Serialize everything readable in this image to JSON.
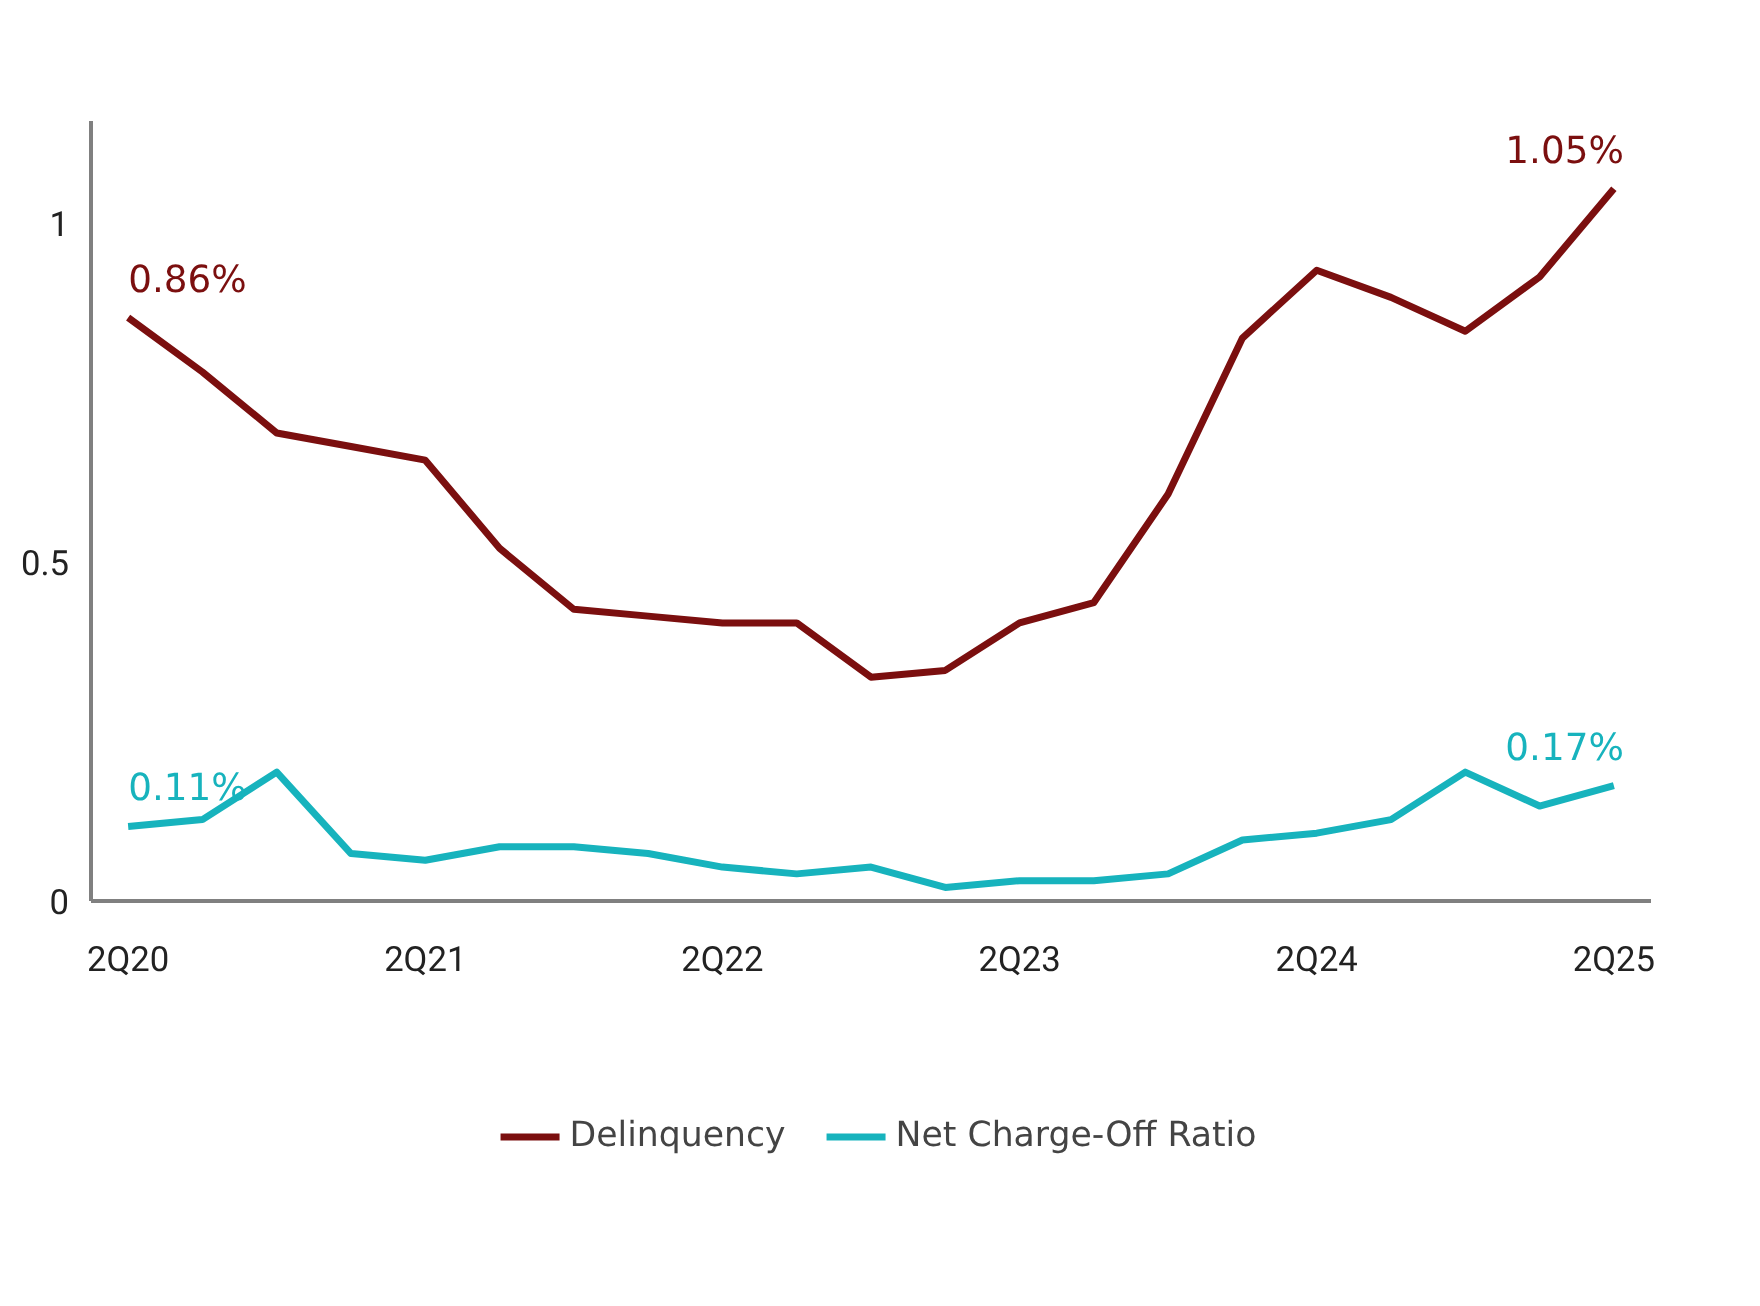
{
  "chart_data": {
    "type": "line",
    "categories": [
      "2Q20",
      null,
      null,
      null,
      "2Q21",
      null,
      null,
      null,
      "2Q22",
      null,
      null,
      null,
      "2Q23",
      null,
      null,
      null,
      "2Q24",
      null,
      null,
      null,
      "2Q25"
    ],
    "series": [
      {
        "name": "Delinquency",
        "color": "#7b0f0f",
        "values": [
          0.86,
          0.78,
          0.69,
          0.67,
          0.65,
          0.52,
          0.43,
          0.42,
          0.41,
          0.41,
          0.33,
          0.34,
          0.41,
          0.44,
          0.6,
          0.83,
          0.93,
          0.89,
          0.84,
          0.92,
          1.05
        ]
      },
      {
        "name": "Net Charge-Off Ratio",
        "color": "#17b3bd",
        "values": [
          0.11,
          0.12,
          0.19,
          0.07,
          0.06,
          0.08,
          0.08,
          0.07,
          0.05,
          0.04,
          0.05,
          0.02,
          0.03,
          0.03,
          0.04,
          0.09,
          0.1,
          0.12,
          0.19,
          0.14,
          0.17
        ]
      }
    ],
    "ylim": [
      0,
      1.15
    ],
    "yticks": [
      0,
      0.5,
      1
    ],
    "grid": false,
    "legend": "bottom",
    "marker": "none",
    "line_style": "solid",
    "annotations": [
      {
        "text": "0.86%",
        "x": "2Q20",
        "y": 0.86
      },
      {
        "text": "1.05%",
        "x": "2Q25",
        "y": 1.05
      },
      {
        "text": "0.11%",
        "x": "2Q20",
        "y": 0.11
      },
      {
        "text": "0.17%",
        "x": "2Q25",
        "y": 0.17
      }
    ]
  }
}
